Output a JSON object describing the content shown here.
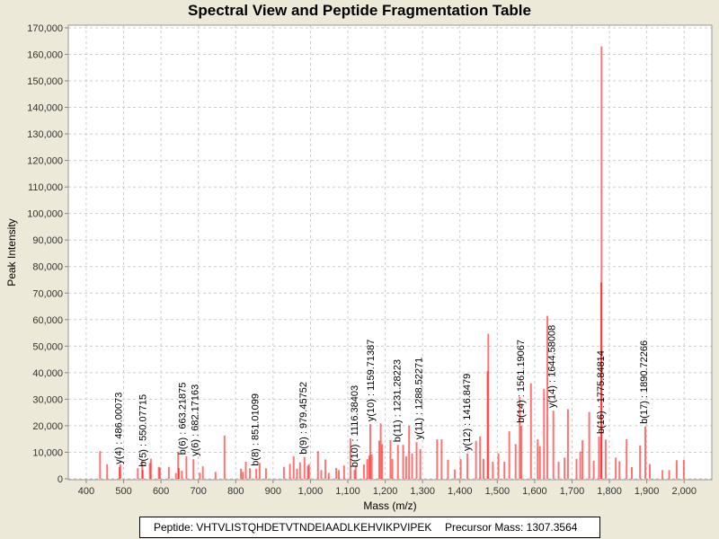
{
  "chart_data": {
    "type": "bar",
    "title": "Spectral View and Peptide Fragmentation Table",
    "xlabel": "Mass (m/z)",
    "ylabel": "Peak Intensity",
    "xlim": [
      352,
      2074
    ],
    "ylim": [
      0,
      171000
    ],
    "xticks": [
      400,
      500,
      600,
      700,
      800,
      900,
      1000,
      1100,
      1200,
      1300,
      1400,
      1500,
      1600,
      1700,
      1800,
      1900,
      2000
    ],
    "xtick_labels": [
      "400",
      "500",
      "600",
      "700",
      "800",
      "900",
      "1,000",
      "1,100",
      "1,200",
      "1,300",
      "1,400",
      "1,500",
      "1,600",
      "1,700",
      "1,800",
      "1,900",
      "2,000"
    ],
    "yticks": [
      0,
      10000,
      20000,
      30000,
      40000,
      50000,
      60000,
      70000,
      80000,
      90000,
      100000,
      110000,
      120000,
      130000,
      140000,
      150000,
      160000,
      170000
    ],
    "ytick_labels": [
      "0",
      "10,000",
      "20,000",
      "30,000",
      "40,000",
      "50,000",
      "60,000",
      "70,000",
      "80,000",
      "90,000",
      "100,000",
      "110,000",
      "120,000",
      "130,000",
      "140,000",
      "150,000",
      "160,000",
      "170,000"
    ],
    "grid": true,
    "peak_color": "#FF0000",
    "peaks": [
      [
        437,
        10400
      ],
      [
        456,
        5500
      ],
      [
        489,
        4500
      ],
      [
        491,
        5500
      ],
      [
        538,
        4000
      ],
      [
        550,
        6800
      ],
      [
        551,
        3300
      ],
      [
        570,
        6000
      ],
      [
        573,
        7600
      ],
      [
        594,
        4500
      ],
      [
        597,
        4200
      ],
      [
        621,
        4500
      ],
      [
        640,
        2200
      ],
      [
        646,
        10100
      ],
      [
        648,
        4100
      ],
      [
        656,
        3000
      ],
      [
        668,
        8500
      ],
      [
        687,
        7400
      ],
      [
        704,
        2300
      ],
      [
        712,
        4700
      ],
      [
        746,
        2600
      ],
      [
        770,
        16300
      ],
      [
        814,
        3800
      ],
      [
        819,
        2600
      ],
      [
        827,
        6400
      ],
      [
        838,
        4000
      ],
      [
        855,
        3800
      ],
      [
        864,
        6000
      ],
      [
        881,
        4000
      ],
      [
        929,
        4500
      ],
      [
        945,
        5600
      ],
      [
        955,
        8500
      ],
      [
        964,
        3800
      ],
      [
        972,
        6200
      ],
      [
        984,
        8200
      ],
      [
        993,
        4900
      ],
      [
        996,
        5500
      ],
      [
        1020,
        10400
      ],
      [
        1029,
        3300
      ],
      [
        1040,
        7300
      ],
      [
        1049,
        2200
      ],
      [
        1069,
        4100
      ],
      [
        1076,
        3300
      ],
      [
        1090,
        5000
      ],
      [
        1107,
        15200
      ],
      [
        1118,
        3300
      ],
      [
        1121,
        4900
      ],
      [
        1143,
        5400
      ],
      [
        1152,
        7400
      ],
      [
        1157,
        8700
      ],
      [
        1160,
        20600
      ],
      [
        1164,
        9200
      ],
      [
        1184,
        14400
      ],
      [
        1188,
        20900
      ],
      [
        1192,
        13000
      ],
      [
        1214,
        14600
      ],
      [
        1219,
        7500
      ],
      [
        1234,
        12800
      ],
      [
        1248,
        12800
      ],
      [
        1256,
        8500
      ],
      [
        1264,
        20000
      ],
      [
        1272,
        9600
      ],
      [
        1284,
        13800
      ],
      [
        1294,
        11200
      ],
      [
        1339,
        14900
      ],
      [
        1351,
        14900
      ],
      [
        1368,
        7200
      ],
      [
        1386,
        3500
      ],
      [
        1402,
        7500
      ],
      [
        1420,
        9500
      ],
      [
        1443,
        14300
      ],
      [
        1454,
        16000
      ],
      [
        1463,
        7500
      ],
      [
        1474,
        40600
      ],
      [
        1476,
        54700
      ],
      [
        1488,
        6400
      ],
      [
        1503,
        9600
      ],
      [
        1519,
        6400
      ],
      [
        1532,
        17900
      ],
      [
        1549,
        13100
      ],
      [
        1560,
        30800
      ],
      [
        1564,
        20000
      ],
      [
        1590,
        36000
      ],
      [
        1608,
        14900
      ],
      [
        1614,
        12300
      ],
      [
        1625,
        33900
      ],
      [
        1634,
        61400
      ],
      [
        1650,
        25700
      ],
      [
        1664,
        6400
      ],
      [
        1680,
        8000
      ],
      [
        1689,
        26300
      ],
      [
        1712,
        7500
      ],
      [
        1722,
        10300
      ],
      [
        1728,
        14600
      ],
      [
        1746,
        25200
      ],
      [
        1758,
        6800
      ],
      [
        1772,
        15900
      ],
      [
        1778,
        74000
      ],
      [
        1779,
        163000
      ],
      [
        1790,
        14800
      ],
      [
        1817,
        8000
      ],
      [
        1827,
        6600
      ],
      [
        1846,
        14900
      ],
      [
        1860,
        4400
      ],
      [
        1882,
        12600
      ],
      [
        1896,
        19700
      ],
      [
        1908,
        5600
      ],
      [
        1942,
        3300
      ],
      [
        1960,
        3300
      ],
      [
        1980,
        7000
      ],
      [
        1999,
        7200
      ]
    ],
    "annotations": [
      {
        "label": "y(4) : 486.00073",
        "mass": 486.00073,
        "intensity": 4500
      },
      {
        "label": "b(5) : 550.07715",
        "mass": 550.07715,
        "intensity": 3500
      },
      {
        "label": "b(6) : 663.21875",
        "mass": 663.21875,
        "intensity": 8000
      },
      {
        "label": "y(6) : 682.17163",
        "mass": 682.17163,
        "intensity": 7500
      },
      {
        "label": "b(8) : 851.01099",
        "mass": 851.01099,
        "intensity": 3800
      },
      {
        "label": "b(9) : 979.45752",
        "mass": 979.45752,
        "intensity": 8200
      },
      {
        "label": "b(10) : 1116.38403",
        "mass": 1116.38403,
        "intensity": 3300
      },
      {
        "label": "y(10) : 1159.71387",
        "mass": 1159.71387,
        "intensity": 20600
      },
      {
        "label": "b(11) : 1231.28223",
        "mass": 1231.28223,
        "intensity": 12800
      },
      {
        "label": "y(11) : 1288.52271",
        "mass": 1288.52271,
        "intensity": 13800
      },
      {
        "label": "y(12) : 1416.8479",
        "mass": 1416.8479,
        "intensity": 9500
      },
      {
        "label": "b(14) : 1561.19067",
        "mass": 1561.19067,
        "intensity": 20000
      },
      {
        "label": "y(14) : 1644.58008",
        "mass": 1644.58008,
        "intensity": 25700
      },
      {
        "label": "b(16) : 1775.84814",
        "mass": 1775.84814,
        "intensity": 15900
      },
      {
        "label": "b(17) : 1890.72266",
        "mass": 1890.72266,
        "intensity": 19700
      }
    ]
  },
  "legend": {
    "peptide": "Peptide: VHTVLISTQHDETVTNDEIAADLKEHVIKPVIPEK",
    "precursor": "Precursor Mass: 1307.3564"
  }
}
